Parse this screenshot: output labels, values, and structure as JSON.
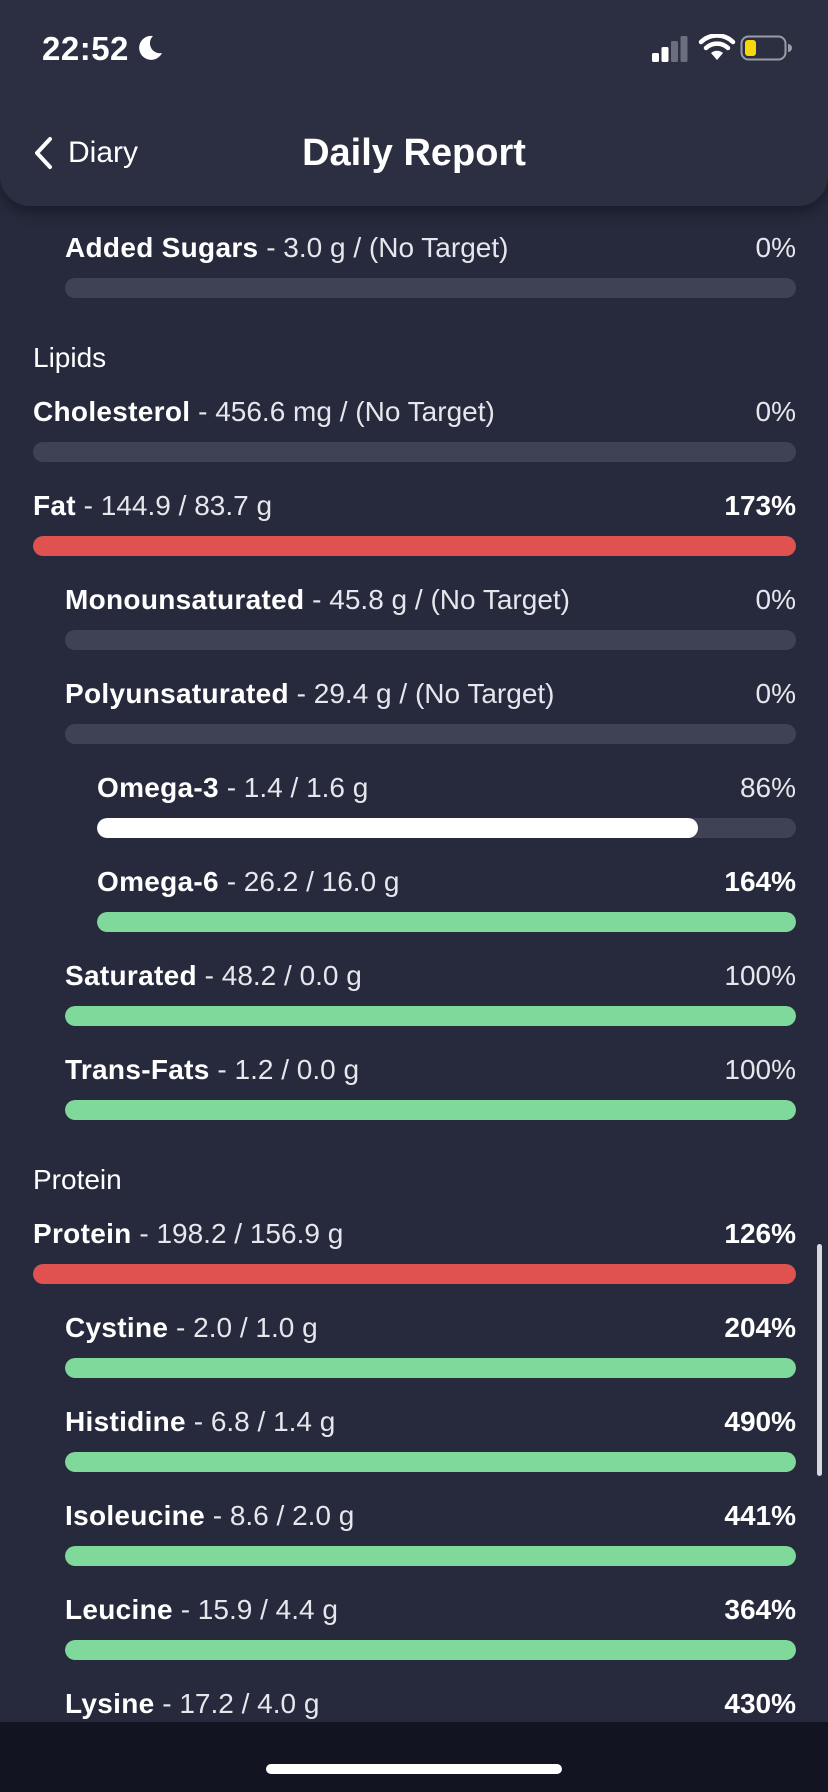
{
  "status_bar": {
    "time": "22:52",
    "moon_icon": "moon-icon",
    "signal_icon": "cellular-signal-icon",
    "wifi_icon": "wifi-icon",
    "battery_icon": "battery-icon",
    "battery_level": 0.3
  },
  "header": {
    "back_label": "Diary",
    "back_icon": "chevron-left-icon",
    "title": "Daily Report"
  },
  "colors": {
    "background": "#262a3c",
    "header": "#2b2f41",
    "track": "#3f4254",
    "red": "#e0524f",
    "green": "#7ed99a",
    "white": "#ffffff",
    "battery_yellow": "#f5d90a"
  },
  "sections": {
    "lipids": "Lipids",
    "protein": "Protein"
  },
  "rows": [
    {
      "name": "Added Sugars",
      "detail": " - 3.0 g / (No Target)",
      "pct": "0%",
      "fill": 0,
      "color": "none",
      "bold_pct": false
    },
    {
      "name": "Cholesterol",
      "detail": " - 456.6 mg / (No Target)",
      "pct": "0%",
      "fill": 0,
      "color": "none",
      "bold_pct": false
    },
    {
      "name": "Fat",
      "detail": " - 144.9 / 83.7 g",
      "pct": "173%",
      "fill": 1,
      "color": "red",
      "bold_pct": true
    },
    {
      "name": "Monounsaturated",
      "detail": " - 45.8 g / (No Target)",
      "pct": "0%",
      "fill": 0,
      "color": "none",
      "bold_pct": false
    },
    {
      "name": "Polyunsaturated",
      "detail": " - 29.4 g / (No Target)",
      "pct": "0%",
      "fill": 0,
      "color": "none",
      "bold_pct": false
    },
    {
      "name": "Omega-3",
      "detail": " - 1.4 / 1.6 g",
      "pct": "86%",
      "fill": 0.86,
      "color": "white",
      "bold_pct": false
    },
    {
      "name": "Omega-6",
      "detail": " - 26.2 / 16.0 g",
      "pct": "164%",
      "fill": 1,
      "color": "green",
      "bold_pct": true
    },
    {
      "name": "Saturated",
      "detail": " - 48.2 / 0.0 g",
      "pct": "100%",
      "fill": 1,
      "color": "green",
      "bold_pct": false
    },
    {
      "name": "Trans-Fats",
      "detail": " - 1.2 / 0.0 g",
      "pct": "100%",
      "fill": 1,
      "color": "green",
      "bold_pct": false
    },
    {
      "name": "Protein",
      "detail": " - 198.2 / 156.9 g",
      "pct": "126%",
      "fill": 1,
      "color": "red",
      "bold_pct": true
    },
    {
      "name": "Cystine",
      "detail": " - 2.0 / 1.0 g",
      "pct": "204%",
      "fill": 1,
      "color": "green",
      "bold_pct": true
    },
    {
      "name": "Histidine",
      "detail": " - 6.8 / 1.4 g",
      "pct": "490%",
      "fill": 1,
      "color": "green",
      "bold_pct": true
    },
    {
      "name": "Isoleucine",
      "detail": " - 8.6 / 2.0 g",
      "pct": "441%",
      "fill": 1,
      "color": "green",
      "bold_pct": true
    },
    {
      "name": "Leucine",
      "detail": " - 15.9 / 4.4 g",
      "pct": "364%",
      "fill": 1,
      "color": "green",
      "bold_pct": true
    },
    {
      "name": "Lysine",
      "detail": " - 17.2 / 4.0 g",
      "pct": "430%",
      "fill": 1,
      "color": "green",
      "bold_pct": true
    }
  ]
}
